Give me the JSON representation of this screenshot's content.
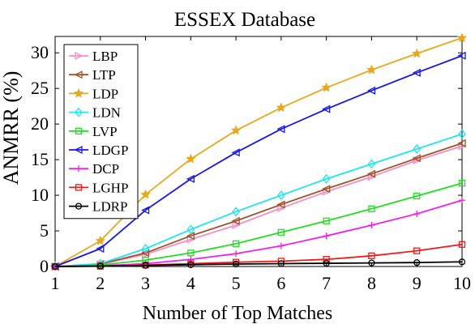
{
  "chart_data": {
    "type": "line",
    "title": "ESSEX Database",
    "xlabel": "Number of Top Matches",
    "ylabel": "ANMRR (%)",
    "x": [
      1,
      2,
      3,
      4,
      5,
      6,
      7,
      8,
      9,
      10
    ],
    "xlim": [
      1,
      10
    ],
    "ylim": [
      0,
      32.3
    ],
    "xticks": [
      1,
      2,
      3,
      4,
      5,
      6,
      7,
      8,
      9,
      10
    ],
    "yticks": [
      0,
      5,
      10,
      15,
      20,
      25,
      30
    ],
    "grid": false,
    "legend_position": "top-left",
    "series": [
      {
        "name": "LBP",
        "color": "#f38fc8",
        "marker": "triangle-right",
        "values": [
          0,
          0.3,
          1.7,
          3.8,
          5.8,
          8.2,
          10.5,
          12.6,
          14.9,
          16.9
        ]
      },
      {
        "name": "LTP",
        "color": "#a0522d",
        "marker": "triangle-left",
        "values": [
          0,
          0.35,
          1.9,
          4.3,
          6.4,
          8.7,
          10.9,
          13.0,
          15.2,
          17.3
        ]
      },
      {
        "name": "LDP",
        "color": "#e5a81e",
        "marker": "star",
        "values": [
          0,
          3.6,
          10.1,
          15.1,
          19.1,
          22.3,
          25.1,
          27.6,
          29.9,
          32.1
        ]
      },
      {
        "name": "LDN",
        "color": "#1ee5ee",
        "marker": "diamond",
        "values": [
          0,
          0.4,
          2.5,
          5.2,
          7.7,
          10.0,
          12.3,
          14.4,
          16.5,
          18.6
        ]
      },
      {
        "name": "LVP",
        "color": "#22dd22",
        "marker": "square",
        "values": [
          0,
          0.2,
          0.9,
          1.9,
          3.2,
          4.8,
          6.4,
          8.1,
          9.9,
          11.7
        ]
      },
      {
        "name": "LDGP",
        "color": "#1818e0",
        "marker": "triangle-left",
        "values": [
          0,
          2.5,
          7.9,
          12.3,
          16.0,
          19.3,
          22.1,
          24.7,
          27.2,
          29.6
        ]
      },
      {
        "name": "DCP",
        "color": "#ee20ee",
        "marker": "plus",
        "values": [
          0,
          0.1,
          0.4,
          1.0,
          1.8,
          2.9,
          4.3,
          5.8,
          7.4,
          9.3
        ]
      },
      {
        "name": "LGHP",
        "color": "#ee1a1a",
        "marker": "square",
        "values": [
          0,
          0.05,
          0.2,
          0.4,
          0.6,
          0.75,
          1.0,
          1.5,
          2.2,
          3.1
        ]
      },
      {
        "name": "LDRP",
        "color": "#000000",
        "marker": "circle",
        "values": [
          0,
          0.05,
          0.15,
          0.25,
          0.35,
          0.4,
          0.45,
          0.5,
          0.55,
          0.65
        ]
      }
    ]
  }
}
